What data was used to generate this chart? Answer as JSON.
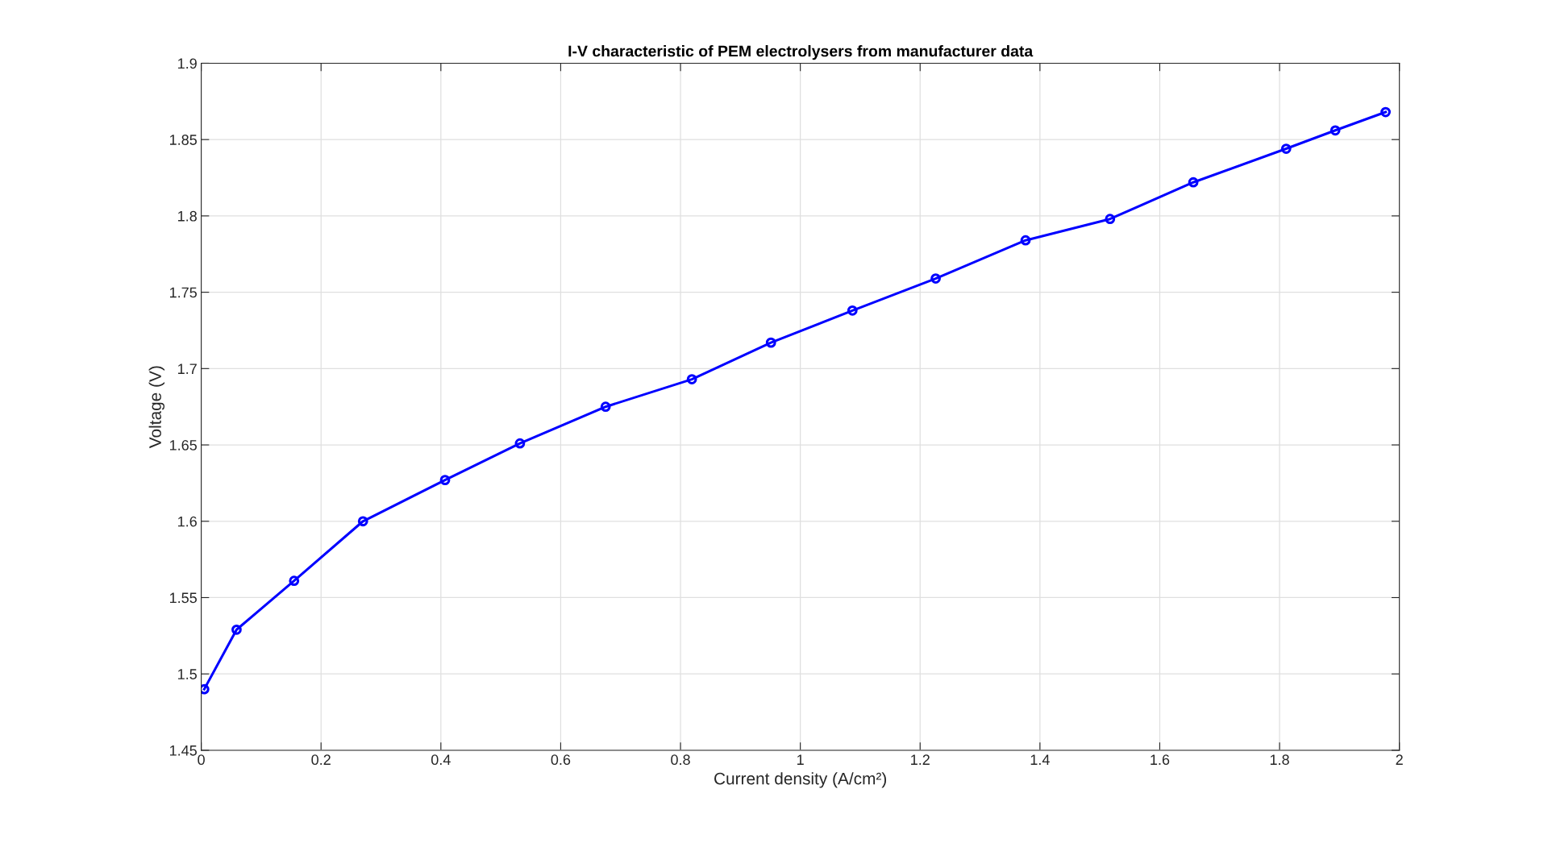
{
  "chart_data": {
    "type": "line",
    "title": "I-V characteristic of PEM electrolysers from manufacturer data",
    "xlabel": "Current density (A/cm²)",
    "ylabel": "Voltage (V)",
    "series": [
      {
        "color": "#0000ff",
        "x": [
          0.005,
          0.059,
          0.155,
          0.27,
          0.407,
          0.532,
          0.675,
          0.819,
          0.951,
          1.087,
          1.226,
          1.376,
          1.517,
          1.656,
          1.811,
          1.893,
          1.977
        ],
        "values": [
          1.49,
          1.529,
          1.561,
          1.6,
          1.627,
          1.651,
          1.675,
          1.693,
          1.717,
          1.738,
          1.759,
          1.784,
          1.798,
          1.822,
          1.844,
          1.856,
          1.868
        ]
      }
    ],
    "xlim": [
      0,
      2
    ],
    "xticks": [
      0,
      0.2,
      0.4,
      0.6,
      0.8,
      1,
      1.2,
      1.4,
      1.6,
      1.8,
      2
    ],
    "ylim": [
      1.45,
      1.9
    ],
    "yticks": [
      1.45,
      1.5,
      1.55,
      1.6,
      1.65,
      1.7,
      1.75,
      1.8,
      1.85,
      1.9
    ],
    "grid": true,
    "marker": "circle",
    "line_style": "solid",
    "legend": false
  }
}
